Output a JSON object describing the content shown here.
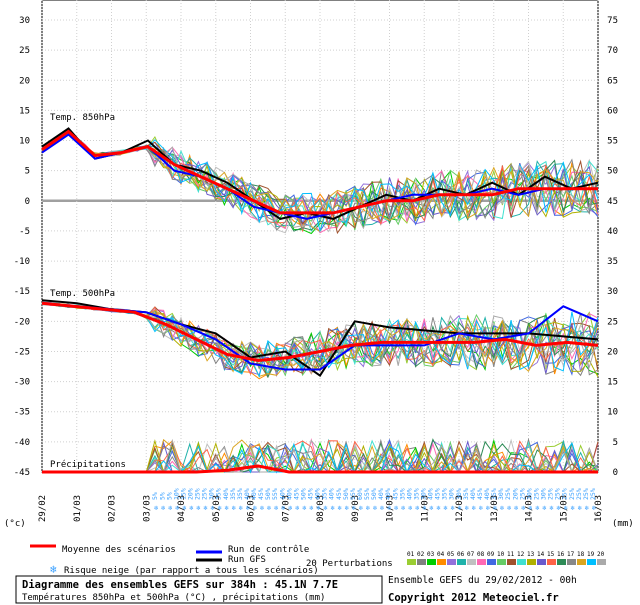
{
  "chart_data": {
    "type": "line",
    "title": "Diagramme des ensembles GEFS sur 384h : 45.1N 7.7E",
    "subtitle": "Températures 850hPa et 500hPa (°C) , précipitations (mm)",
    "run_info": "Ensemble GEFS du 29/02/2012 - 00h",
    "copyright": "Copyright 2012 Meteociel.fr",
    "left_unit": "(°c)",
    "right_unit": "(mm)",
    "left_ticks": [
      "30",
      "25",
      "20",
      "15",
      "10",
      "5",
      "0",
      "-5",
      "-10",
      "-15",
      "-20",
      "-25",
      "-30",
      "-35",
      "-40",
      "-45"
    ],
    "right_ticks": [
      "75",
      "70",
      "65",
      "60",
      "55",
      "50",
      "45",
      "40",
      "35",
      "30",
      "25",
      "20",
      "15",
      "10",
      "5",
      "0"
    ],
    "x_dates": [
      "29/02",
      "01/03",
      "02/03",
      "03/03",
      "04/03",
      "05/03",
      "06/03",
      "07/03",
      "08/03",
      "09/03",
      "10/03",
      "11/03",
      "12/03",
      "13/03",
      "14/03",
      "15/03",
      "16/03"
    ],
    "panel_labels": {
      "t850": "Temp. 850hPa",
      "t500": "Temp. 500hPa",
      "precip": "Précipitations"
    },
    "legend": {
      "mean": "Moyenne des scénarios",
      "control": "Run de contrôle",
      "gfs": "Run GFS",
      "perturbations": "20 Perturbations",
      "snow": "Risque neige (par rapport a tous les scénarios)",
      "pert_numbers": [
        "01",
        "02",
        "03",
        "04",
        "05",
        "06",
        "07",
        "08",
        "09",
        "10",
        "11",
        "12",
        "13",
        "14",
        "15",
        "16",
        "17",
        "18",
        "19",
        "20"
      ]
    },
    "colors": {
      "mean": "#ff0000",
      "control": "#0000ff",
      "gfs": "#000000",
      "snow": "#3aa0ff",
      "perturbations": [
        "#9acd32",
        "#808080",
        "#00cc00",
        "#ff8c00",
        "#9370db",
        "#20b2aa",
        "#c0c0c0",
        "#ff69b4",
        "#4169e1",
        "#66cc66",
        "#a0522d",
        "#40e0d0",
        "#b0b000",
        "#6a5acd",
        "#ff6347",
        "#2e8b57",
        "#888888",
        "#daa520",
        "#00bfff",
        "#aaaaaa"
      ]
    },
    "snow_risk_pct": [
      "5%",
      "5%",
      "5%",
      "10%",
      "15%",
      "20%",
      "25%",
      "25%",
      "30%",
      "35%",
      "40%",
      "35%",
      "35%",
      "40%",
      "40%",
      "45%",
      "50%",
      "55%",
      "40%",
      "40%",
      "45%",
      "50%",
      "45%",
      "40%",
      "35%",
      "40%",
      "45%",
      "50%",
      "55%",
      "60%",
      "55%",
      "50%",
      "40%",
      "40%",
      "45%",
      "35%",
      "40%",
      "35%",
      "30%",
      "40%",
      "45%",
      "35%",
      "30%",
      "30%",
      "35%",
      "40%",
      "45%",
      "40%",
      "35%",
      "30%",
      "25%",
      "20%",
      "25%",
      "20%",
      "25%",
      "30%",
      "25%",
      "25%",
      "25%",
      "25%",
      "25%",
      "25%",
      "25%"
    ],
    "series": {
      "t850_mean": [
        8.5,
        11.5,
        7.5,
        8,
        9,
        6,
        4,
        2,
        0,
        -2,
        -2,
        -2,
        -1,
        0,
        0,
        1,
        1,
        1,
        2,
        2,
        2,
        2
      ],
      "t850_control": [
        8,
        11,
        7,
        8,
        9,
        5,
        4,
        2,
        -1,
        -2,
        -3,
        -2,
        -1,
        0,
        1,
        1,
        1,
        2,
        1,
        2,
        2,
        2
      ],
      "t850_gfs": [
        9,
        12,
        7,
        8,
        10,
        6,
        5,
        3,
        0,
        -3,
        -2,
        -3,
        -1,
        1,
        0,
        2,
        1,
        3,
        1,
        4,
        2,
        3
      ],
      "t500_mean": [
        -17,
        -17.5,
        -18,
        -18.5,
        -20.5,
        -23,
        -25.5,
        -26.5,
        -26,
        -25,
        -24,
        -23.5,
        -23.5,
        -23.5,
        -23.5,
        -23,
        -24,
        -23.5,
        -24
      ],
      "t500_control": [
        -17,
        -17.5,
        -18,
        -18.5,
        -20.5,
        -23,
        -27,
        -28,
        -28,
        -24,
        -24,
        -24,
        -22,
        -23,
        -22,
        -17.5,
        -20
      ],
      "t500_gfs": [
        -16.5,
        -17,
        -18,
        -18.5,
        -20.5,
        -22,
        -26,
        -25,
        -29,
        -20,
        -21,
        -21.5,
        -22,
        -22,
        -22,
        -22.5,
        -23
      ],
      "precip_mean": [
        0,
        0,
        0,
        0,
        0,
        0,
        0.3,
        1,
        0,
        0,
        0,
        0,
        0,
        0,
        0,
        0,
        0,
        0,
        0
      ]
    }
  }
}
